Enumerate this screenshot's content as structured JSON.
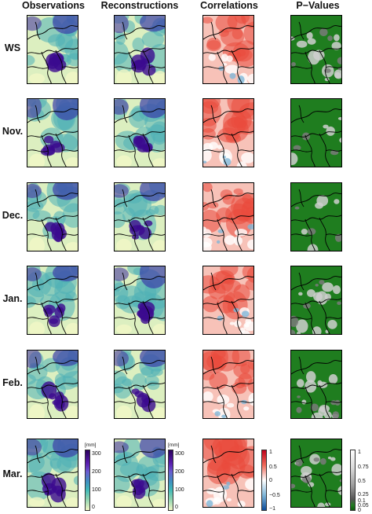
{
  "headers": {
    "observations": "Observations",
    "reconstructions": "Reconstructions",
    "correlations": "Correlations",
    "pvalues": "P−Values"
  },
  "rows": [
    "WS",
    "Nov.",
    "Dec.",
    "Jan.",
    "Feb.",
    "Mar."
  ],
  "legends": {
    "precip": {
      "unit": "[mm]",
      "ticks": [
        "300",
        "200",
        "100",
        "0"
      ]
    },
    "corr": {
      "ticks": [
        "1",
        "0.5",
        "0",
        "−0.5",
        "−1"
      ]
    },
    "pval": {
      "ticks": [
        "1",
        "0.75",
        "0.5",
        "0.25",
        "0.1",
        "0.05",
        "0"
      ]
    }
  },
  "colors": {
    "precip_low": "#f2f7c6",
    "precip_mid": "#3fa9b5",
    "precip_high": "#3b0a8f",
    "corr_pos": "#e8433a",
    "corr_neg": "#2b7fb8",
    "pval_low": "#1f7d1f",
    "pval_high": "#d8d8d8"
  }
}
